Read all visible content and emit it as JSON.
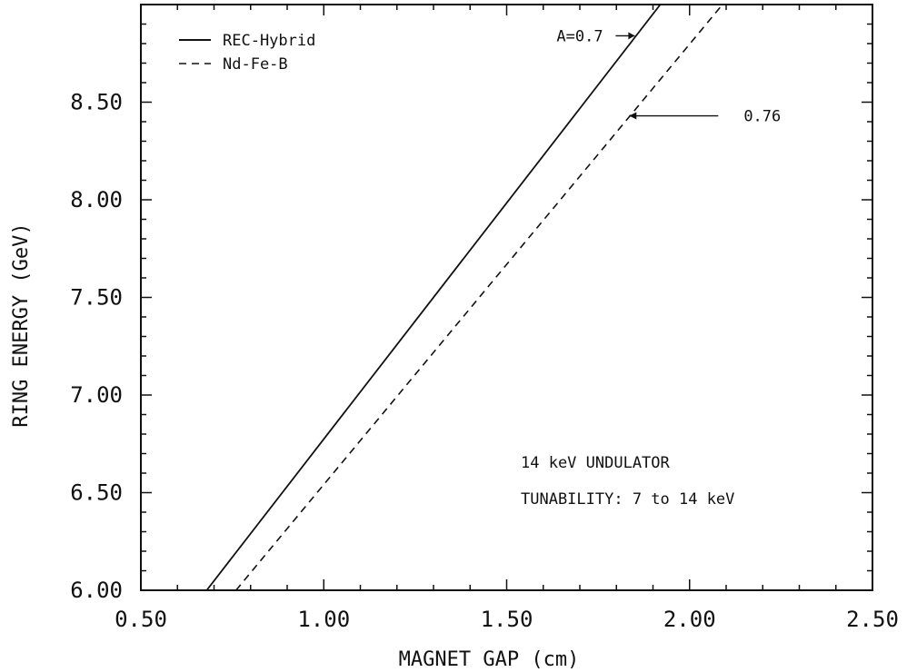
{
  "chart_data": {
    "type": "line",
    "title": "",
    "xlabel": "MAGNET GAP (cm)",
    "ylabel": "RING ENERGY (GeV)",
    "xlim": [
      0.5,
      2.5
    ],
    "ylim": [
      6.0,
      9.0
    ],
    "xticks": [
      0.5,
      1.0,
      1.5,
      2.0,
      2.5
    ],
    "xtick_labels": [
      "0.50",
      "1.00",
      "1.50",
      "2.00",
      "2.50"
    ],
    "yticks": [
      6.0,
      6.5,
      7.0,
      7.5,
      8.0,
      8.5
    ],
    "ytick_labels": [
      "6.00",
      "6.50",
      "7.00",
      "7.50",
      "8.00",
      "8.50"
    ],
    "grid": false,
    "legend": "top-left",
    "series": [
      {
        "name": "REC-Hybrid",
        "style": "solid",
        "x": [
          0.68,
          1.92
        ],
        "y": [
          6.0,
          9.0
        ]
      },
      {
        "name": "Nd-Fe-B",
        "style": "dashed",
        "x": [
          0.76,
          2.09
        ],
        "y": [
          6.0,
          9.0
        ]
      }
    ],
    "annotations": [
      {
        "text": "A=0.7",
        "points_to": {
          "x": 1.86,
          "y": 8.84
        }
      },
      {
        "text": "0.76",
        "points_to": {
          "x": 1.83,
          "y": 8.43
        }
      },
      {
        "text": "14 keV UNDULATOR"
      },
      {
        "text": "TUNABILITY:  7 to 14 keV"
      }
    ],
    "colors": {
      "line": "#111111",
      "background": "#ffffff"
    }
  }
}
